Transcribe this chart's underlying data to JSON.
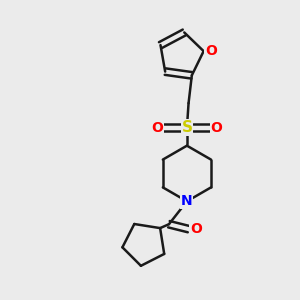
{
  "background_color": "#ebebeb",
  "bond_color": "#1a1a1a",
  "O_color": "#ff0000",
  "N_color": "#0000ff",
  "S_color": "#cccc00",
  "line_width": 1.8,
  "font_size": 10,
  "fig_width": 3.0,
  "fig_height": 3.0,
  "dpi": 100,
  "xlim": [
    0.05,
    0.95
  ],
  "ylim": [
    0.05,
    0.95
  ]
}
